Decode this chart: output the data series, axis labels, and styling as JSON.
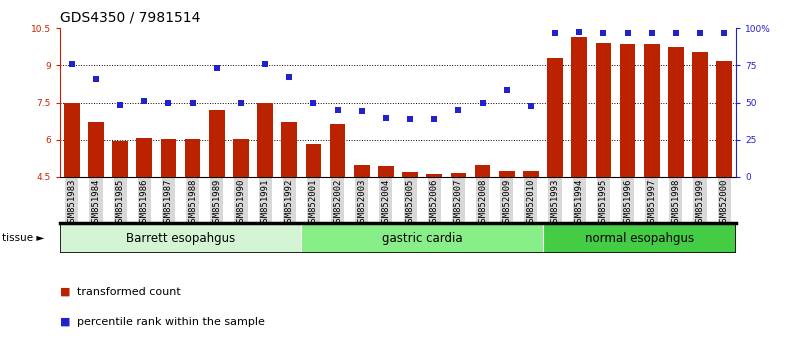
{
  "title": "GDS4350 / 7981514",
  "samples": [
    "GSM851983",
    "GSM851984",
    "GSM851985",
    "GSM851986",
    "GSM851987",
    "GSM851988",
    "GSM851989",
    "GSM851990",
    "GSM851991",
    "GSM851992",
    "GSM852001",
    "GSM852002",
    "GSM852003",
    "GSM852004",
    "GSM852005",
    "GSM852006",
    "GSM852007",
    "GSM852008",
    "GSM852009",
    "GSM852010",
    "GSM851993",
    "GSM851994",
    "GSM851995",
    "GSM851996",
    "GSM851997",
    "GSM851998",
    "GSM851999",
    "GSM852000"
  ],
  "bar_values": [
    7.5,
    6.7,
    5.95,
    6.08,
    6.05,
    6.05,
    7.2,
    6.05,
    7.5,
    6.7,
    5.82,
    6.62,
    5.0,
    4.95,
    4.72,
    4.62,
    4.65,
    5.0,
    4.75,
    4.75,
    9.3,
    10.15,
    9.9,
    9.85,
    9.85,
    9.75,
    9.55,
    9.2
  ],
  "dot_values": [
    9.05,
    8.45,
    7.4,
    7.55,
    7.5,
    7.5,
    8.9,
    7.5,
    9.05,
    8.55,
    7.5,
    7.2,
    7.15,
    6.9,
    6.85,
    6.85,
    7.2,
    7.5,
    8.0,
    7.35,
    10.3,
    10.35,
    10.3,
    10.3,
    10.3,
    10.3,
    10.3,
    10.3
  ],
  "bar_color": "#bb2200",
  "dot_color": "#2222cc",
  "ylim": [
    4.5,
    10.5
  ],
  "yticks_left": [
    4.5,
    6.0,
    7.5,
    9.0,
    10.5
  ],
  "yticks_right": [
    0,
    25,
    50,
    75,
    100
  ],
  "ytick_labels_left": [
    "4.5",
    "6",
    "7.5",
    "9",
    "10.5"
  ],
  "ytick_labels_right": [
    "0",
    "25",
    "50",
    "75",
    "100%"
  ],
  "groups": [
    {
      "label": "Barrett esopahgus",
      "start": 0,
      "end": 10,
      "color": "#d4f5d4"
    },
    {
      "label": "gastric cardia",
      "start": 10,
      "end": 20,
      "color": "#88ee88"
    },
    {
      "label": "normal esopahgus",
      "start": 20,
      "end": 28,
      "color": "#44cc44"
    }
  ],
  "tissue_label": "tissue",
  "legend_bar_label": "transformed count",
  "legend_dot_label": "percentile rank within the sample",
  "grid_yticks": [
    6.0,
    7.5,
    9.0
  ],
  "bar_width": 0.65,
  "title_fontsize": 10,
  "tick_fontsize": 6.5,
  "group_label_fontsize": 8.5,
  "legend_fontsize": 8,
  "axis_label_color_left": "#cc2200",
  "axis_label_color_right": "#2222cc",
  "xticklabel_bg": "#d8d8d8"
}
